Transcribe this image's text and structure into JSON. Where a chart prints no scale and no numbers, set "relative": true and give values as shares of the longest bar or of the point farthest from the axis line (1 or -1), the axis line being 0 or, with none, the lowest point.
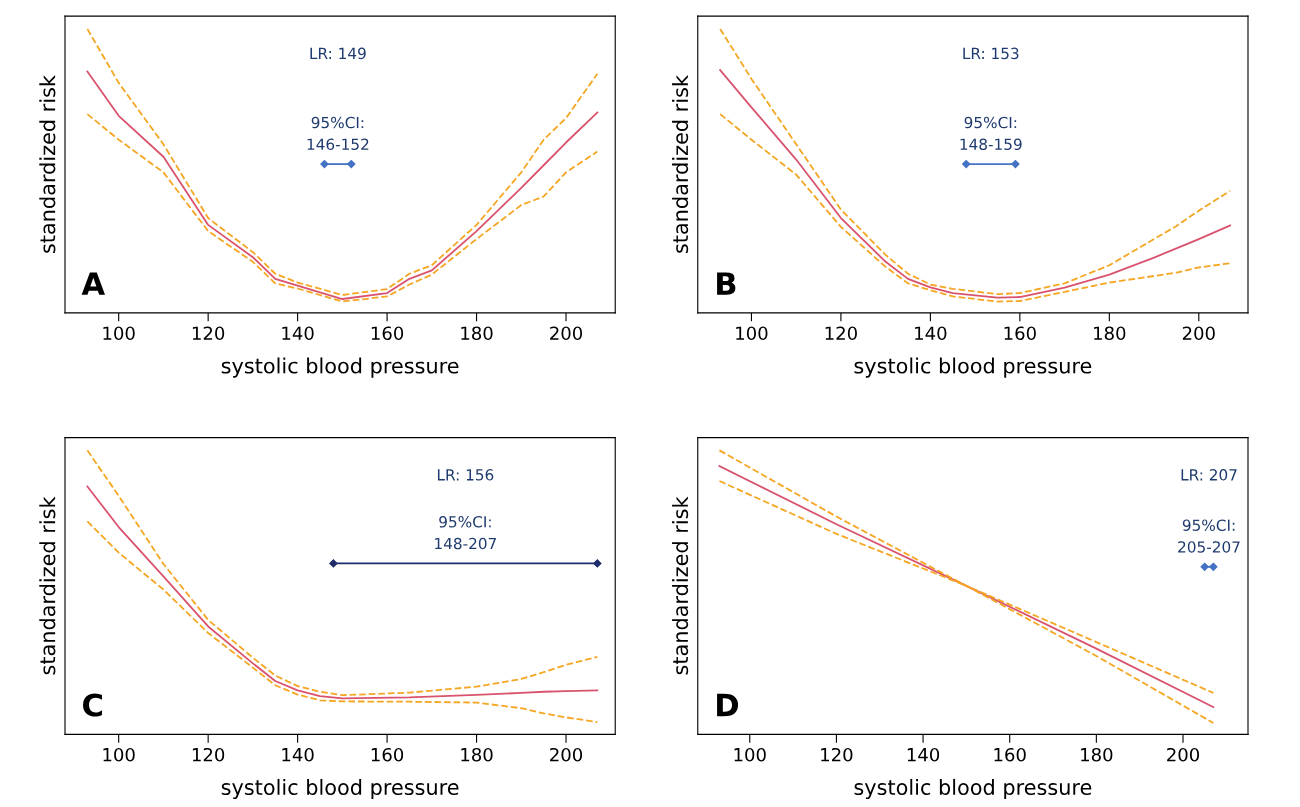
{
  "chart_data": [
    {
      "type": "line",
      "relative": true,
      "xlabel": "systolic blood pressure",
      "ylabel": "standardized risk",
      "xlim": [
        88,
        211
      ],
      "xticks": [
        100,
        120,
        140,
        160,
        180,
        200
      ],
      "grid": false,
      "legend": false,
      "annotations": [
        "LR: 149",
        "95%CI:\n146-152",
        "A"
      ],
      "series": [
        {
          "color": "#d9536f",
          "line_style": "solid",
          "x": [
            93,
            100,
            110,
            120,
            130,
            135,
            140,
            150,
            160,
            165,
            170,
            180,
            190,
            195,
            200,
            207
          ],
          "values": [
            0.85,
            0.694,
            0.55,
            0.31,
            0.196,
            0.12,
            0.096,
            0.049,
            0.07,
            0.12,
            0.15,
            0.288,
            0.44,
            0.52,
            0.6,
            0.706
          ]
        },
        {
          "color": "#f5a623",
          "line_style": "dashed",
          "x": [
            93,
            100,
            110,
            120,
            130,
            135,
            140,
            150,
            160,
            165,
            170,
            180,
            190,
            195,
            200,
            207
          ],
          "values": [
            1.0,
            0.81,
            0.594,
            0.334,
            0.214,
            0.138,
            0.107,
            0.063,
            0.084,
            0.138,
            0.168,
            0.31,
            0.495,
            0.61,
            0.686,
            0.842
          ]
        },
        {
          "color": "#f5a623",
          "line_style": "dashed",
          "x": [
            93,
            100,
            110,
            120,
            130,
            135,
            140,
            150,
            160,
            165,
            170,
            180,
            190,
            195,
            200,
            207
          ],
          "values": [
            0.7,
            0.61,
            0.495,
            0.288,
            0.18,
            0.104,
            0.086,
            0.04,
            0.058,
            0.1,
            0.135,
            0.26,
            0.38,
            0.41,
            0.495,
            0.568
          ]
        },
        {
          "color": "#4472c4",
          "line_style": "solid",
          "marker": "diamond",
          "x": [
            146,
            152
          ],
          "values": [
            0.524,
            0.524
          ]
        }
      ]
    },
    {
      "type": "line",
      "relative": true,
      "xlabel": "systolic blood pressure",
      "ylabel": "standardized risk",
      "xlim": [
        88,
        211
      ],
      "xticks": [
        100,
        120,
        140,
        160,
        180,
        200
      ],
      "grid": false,
      "legend": false,
      "annotations": [
        "LR: 153",
        "95%CI:\n148-159",
        "B"
      ],
      "series": [
        {
          "color": "#d9536f",
          "line_style": "solid",
          "x": [
            93,
            100,
            110,
            120,
            130,
            135,
            140,
            145,
            155,
            160,
            170,
            180,
            190,
            195,
            200,
            207
          ],
          "values": [
            0.855,
            0.724,
            0.54,
            0.334,
            0.18,
            0.12,
            0.09,
            0.07,
            0.054,
            0.056,
            0.089,
            0.135,
            0.195,
            0.227,
            0.26,
            0.308
          ]
        },
        {
          "color": "#f5a623",
          "line_style": "dashed",
          "x": [
            93,
            100,
            110,
            120,
            130,
            135,
            140,
            145,
            155,
            160,
            170,
            180,
            190,
            195,
            200,
            207
          ],
          "values": [
            1.0,
            0.824,
            0.594,
            0.364,
            0.204,
            0.138,
            0.1,
            0.085,
            0.066,
            0.07,
            0.104,
            0.168,
            0.26,
            0.306,
            0.36,
            0.43
          ]
        },
        {
          "color": "#f5a623",
          "line_style": "dashed",
          "x": [
            93,
            100,
            110,
            120,
            130,
            135,
            140,
            145,
            155,
            160,
            170,
            180,
            190,
            195,
            200,
            207
          ],
          "values": [
            0.7,
            0.61,
            0.487,
            0.303,
            0.162,
            0.104,
            0.08,
            0.058,
            0.04,
            0.042,
            0.074,
            0.107,
            0.13,
            0.142,
            0.16,
            0.175
          ]
        },
        {
          "color": "#4472c4",
          "line_style": "solid",
          "marker": "diamond",
          "x": [
            148,
            159
          ],
          "values": [
            0.524,
            0.524
          ]
        }
      ]
    },
    {
      "type": "line",
      "relative": true,
      "xlabel": "systolic blood pressure",
      "ylabel": "standardized risk",
      "xlim": [
        88,
        211
      ],
      "xticks": [
        100,
        120,
        140,
        160,
        180,
        200
      ],
      "grid": false,
      "legend": false,
      "annotations": [
        "LR: 156",
        "95%CI:\n148-207",
        "C"
      ],
      "series": [
        {
          "color": "#d9536f",
          "line_style": "solid",
          "x": [
            93,
            100,
            110,
            120,
            130,
            135,
            140,
            145,
            150,
            165,
            180,
            190,
            195,
            200,
            207
          ],
          "values": [
            0.873,
            0.73,
            0.556,
            0.38,
            0.25,
            0.188,
            0.155,
            0.135,
            0.127,
            0.13,
            0.139,
            0.146,
            0.15,
            0.152,
            0.155
          ]
        },
        {
          "color": "#f5a623",
          "line_style": "dashed",
          "x": [
            93,
            100,
            110,
            120,
            130,
            135,
            140,
            145,
            150,
            165,
            180,
            190,
            195,
            200,
            207
          ],
          "values": [
            1.0,
            0.84,
            0.6,
            0.403,
            0.27,
            0.207,
            0.17,
            0.15,
            0.138,
            0.147,
            0.168,
            0.195,
            0.219,
            0.245,
            0.273
          ]
        },
        {
          "color": "#f5a623",
          "line_style": "dashed",
          "x": [
            93,
            100,
            110,
            120,
            130,
            135,
            140,
            145,
            150,
            165,
            180,
            190,
            195,
            200,
            207
          ],
          "values": [
            0.75,
            0.64,
            0.51,
            0.357,
            0.235,
            0.173,
            0.14,
            0.12,
            0.116,
            0.115,
            0.112,
            0.092,
            0.074,
            0.06,
            0.043
          ]
        },
        {
          "color": "#1f2d6b",
          "line_style": "solid",
          "marker": "diamond",
          "x": [
            148,
            207
          ],
          "values": [
            0.602,
            0.602
          ]
        }
      ]
    },
    {
      "type": "line",
      "relative": true,
      "xlabel": "systolic blood pressure",
      "ylabel": "standardized risk",
      "xlim": [
        88,
        215
      ],
      "xticks": [
        100,
        120,
        140,
        160,
        180,
        200
      ],
      "grid": false,
      "legend": false,
      "annotations": [
        "LR: 207",
        "95%CI:\n205-207",
        "D"
      ],
      "series": [
        {
          "color": "#d9536f",
          "line_style": "solid",
          "x": [
            93,
            120,
            150,
            180,
            207
          ],
          "values": [
            0.945,
            0.74,
            0.523,
            0.302,
            0.096
          ]
        },
        {
          "color": "#f5a623",
          "line_style": "dashed",
          "x": [
            93,
            120,
            150,
            180,
            207
          ],
          "values": [
            1.0,
            0.767,
            0.523,
            0.325,
            0.146
          ]
        },
        {
          "color": "#f5a623",
          "line_style": "dashed",
          "x": [
            93,
            120,
            150,
            180,
            207
          ],
          "values": [
            0.892,
            0.706,
            0.523,
            0.276,
            0.04
          ]
        },
        {
          "color": "#4472c4",
          "line_style": "solid",
          "marker": "diamond",
          "x": [
            205,
            207
          ],
          "values": [
            0.59,
            0.59
          ]
        }
      ]
    }
  ]
}
